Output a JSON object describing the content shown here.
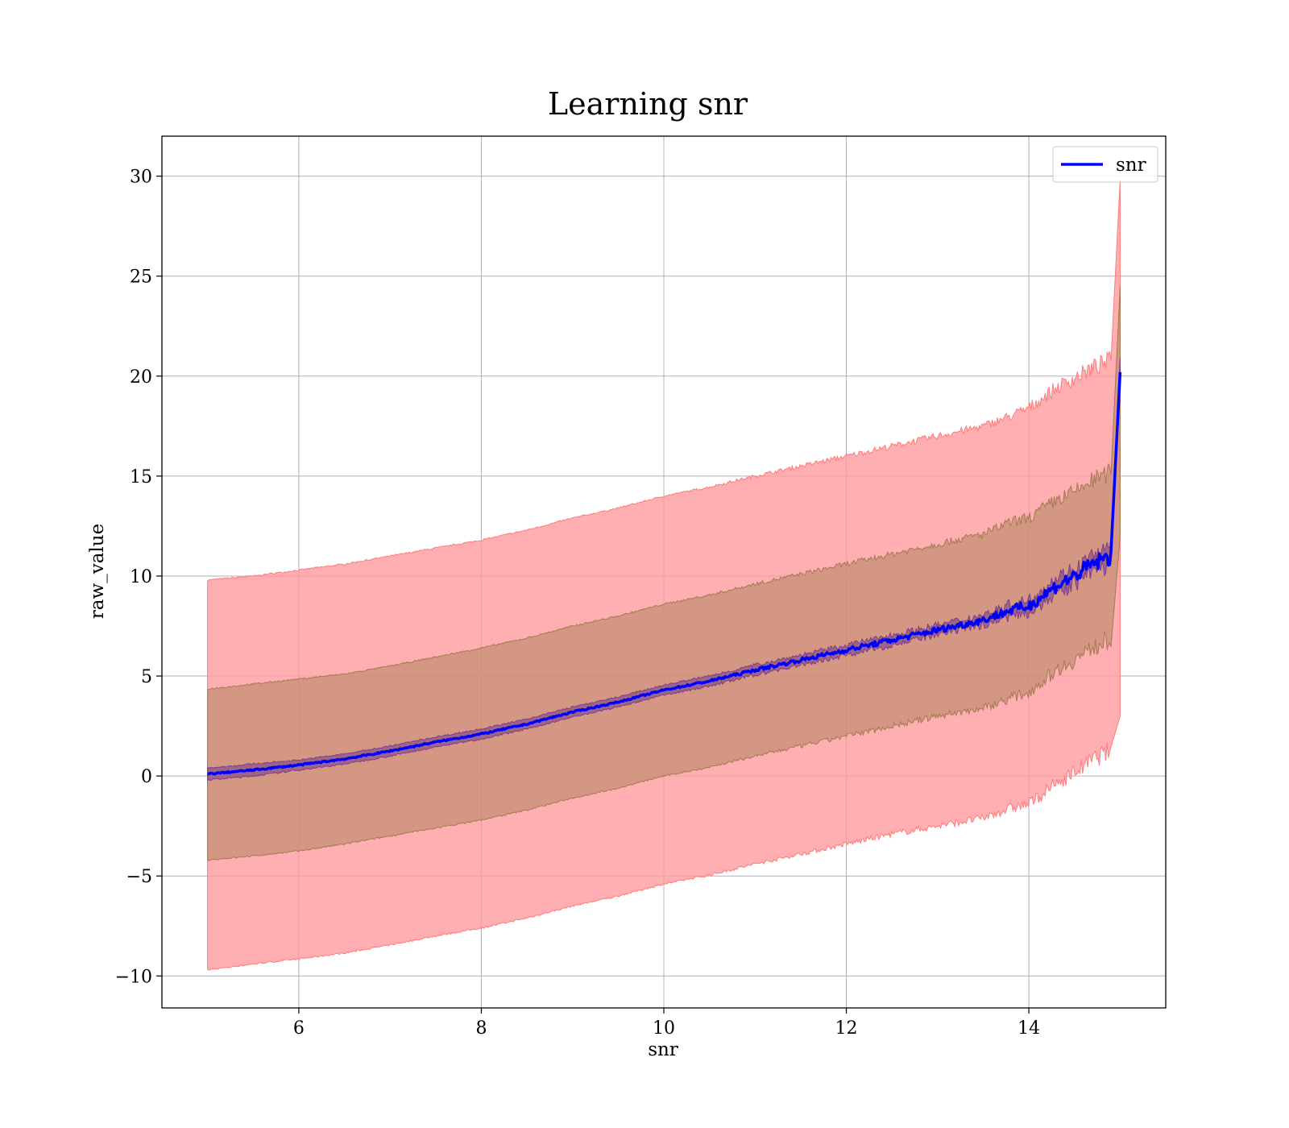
{
  "chart_data": {
    "type": "line",
    "title": "Learning snr",
    "xlabel": "snr",
    "ylabel": "raw_value",
    "xlim": [
      4.5,
      15.5
    ],
    "ylim": [
      -11.6,
      32
    ],
    "x_ticks": [
      6,
      8,
      10,
      12,
      14
    ],
    "x_tick_labels": [
      "6",
      "8",
      "10",
      "12",
      "14"
    ],
    "y_ticks": [
      -10,
      -5,
      0,
      5,
      10,
      15,
      20,
      25,
      30
    ],
    "y_tick_labels": [
      "−10",
      "−5",
      "0",
      "5",
      "10",
      "15",
      "20",
      "25",
      "30"
    ],
    "grid": true,
    "legend": {
      "placement": "top-right",
      "entries": [
        "snr"
      ]
    },
    "colors": {
      "line": "#0000ff",
      "outer_band": "#ff9a9e",
      "middle_band": "#b0855c",
      "inner_band": "#8a4e8c"
    },
    "series": [
      {
        "name": "snr",
        "x": [
          5.0,
          5.5,
          6.0,
          6.5,
          7.0,
          7.5,
          8.0,
          8.5,
          9.0,
          9.5,
          10.0,
          10.5,
          11.0,
          11.5,
          12.0,
          12.5,
          13.0,
          13.5,
          13.8,
          14.0,
          14.3,
          14.5,
          14.7,
          14.9,
          15.0
        ],
        "y": [
          0.1,
          0.3,
          0.55,
          0.85,
          1.25,
          1.7,
          2.1,
          2.6,
          3.2,
          3.7,
          4.3,
          4.75,
          5.3,
          5.8,
          6.3,
          6.8,
          7.3,
          7.8,
          8.3,
          8.5,
          9.5,
          10.0,
          10.6,
          11.0,
          20.2
        ],
        "band_outer": {
          "lower": [
            -9.7,
            -9.4,
            -9.15,
            -8.85,
            -8.45,
            -8.0,
            -7.6,
            -7.1,
            -6.5,
            -6.0,
            -5.4,
            -4.95,
            -4.4,
            -3.9,
            -3.4,
            -2.9,
            -2.5,
            -2.1,
            -1.6,
            -1.4,
            -0.4,
            0.2,
            0.8,
            1.3,
            3.0
          ],
          "upper": [
            9.8,
            10.0,
            10.3,
            10.6,
            11.0,
            11.4,
            11.8,
            12.3,
            12.9,
            13.4,
            14.0,
            14.45,
            15.0,
            15.5,
            16.0,
            16.5,
            17.0,
            17.5,
            18.0,
            18.4,
            19.4,
            19.9,
            20.4,
            20.8,
            29.8
          ]
        },
        "band_middle": {
          "lower": [
            -4.2,
            -4.0,
            -3.75,
            -3.4,
            -3.0,
            -2.6,
            -2.2,
            -1.7,
            -1.1,
            -0.6,
            0.0,
            0.45,
            1.0,
            1.5,
            2.0,
            2.5,
            3.0,
            3.4,
            3.9,
            4.2,
            5.3,
            5.8,
            6.4,
            6.9,
            12.0
          ],
          "upper": [
            4.35,
            4.6,
            4.85,
            5.1,
            5.5,
            5.95,
            6.4,
            6.9,
            7.5,
            8.0,
            8.6,
            9.05,
            9.6,
            10.1,
            10.6,
            11.1,
            11.6,
            12.1,
            12.7,
            12.9,
            13.8,
            14.2,
            14.8,
            15.2,
            24.5
          ]
        },
        "band_inner": {
          "lower": [
            -0.2,
            0.0,
            0.3,
            0.6,
            1.0,
            1.45,
            1.85,
            2.35,
            2.95,
            3.45,
            4.05,
            4.5,
            5.05,
            5.55,
            6.05,
            6.55,
            7.05,
            7.55,
            8.0,
            8.2,
            9.1,
            9.6,
            10.2,
            10.6,
            19.5
          ],
          "upper": [
            0.4,
            0.6,
            0.8,
            1.1,
            1.5,
            1.95,
            2.35,
            2.85,
            3.45,
            3.95,
            4.55,
            5.0,
            5.55,
            6.05,
            6.55,
            7.05,
            7.55,
            8.05,
            8.6,
            8.8,
            9.9,
            10.4,
            11.0,
            11.4,
            20.9
          ]
        }
      }
    ]
  }
}
